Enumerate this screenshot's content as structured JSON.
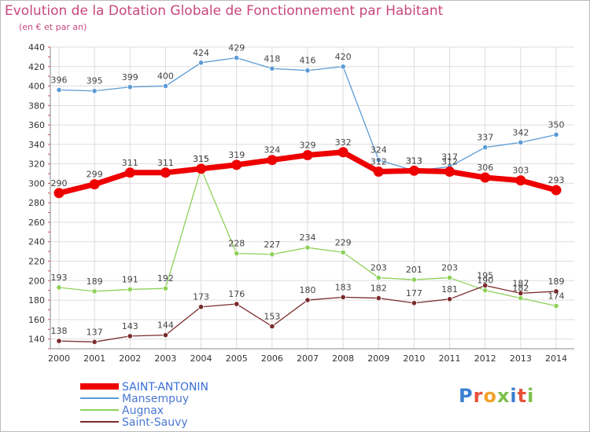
{
  "title": "Evolution de la Dotation Globale de Fonctionnement par Habitant",
  "subtitle": "(en € et par an)",
  "logo_text": "Proxiti",
  "chart_data": {
    "type": "line",
    "title": "Evolution de la Dotation Globale de Fonctionnement par Habitant",
    "subtitle": "(en € et par an)",
    "xlabel": "",
    "ylabel": "",
    "x": [
      "2000",
      "2001",
      "2002",
      "2003",
      "2004",
      "2005",
      "2006",
      "2007",
      "2008",
      "2009",
      "2010",
      "2011",
      "2012",
      "2013",
      "2014"
    ],
    "ylim": [
      130,
      440
    ],
    "yticks": [
      140,
      160,
      180,
      200,
      220,
      240,
      260,
      280,
      300,
      320,
      340,
      360,
      380,
      400,
      420,
      440
    ],
    "grid": true,
    "legend": "bottom-left",
    "series": [
      {
        "name": "SAINT-ANTONIN",
        "color": "#ee0000",
        "values": [
          290,
          299,
          311,
          311,
          315,
          319,
          324,
          329,
          332,
          312,
          313,
          312,
          306,
          303,
          293
        ]
      },
      {
        "name": "Mansempuy",
        "color": "#5b9bd5",
        "values": [
          396,
          395,
          399,
          400,
          424,
          429,
          418,
          416,
          420,
          324,
          313,
          317,
          337,
          342,
          350
        ]
      },
      {
        "name": "Augnax",
        "color": "#8ed15a",
        "values": [
          193,
          189,
          191,
          192,
          315,
          228,
          227,
          234,
          229,
          203,
          201,
          203,
          190,
          182,
          174
        ]
      },
      {
        "name": "Saint-Sauvy",
        "color": "#7a2a2a",
        "values": [
          138,
          137,
          143,
          144,
          173,
          176,
          153,
          180,
          183,
          182,
          177,
          181,
          195,
          187,
          189
        ]
      }
    ]
  }
}
